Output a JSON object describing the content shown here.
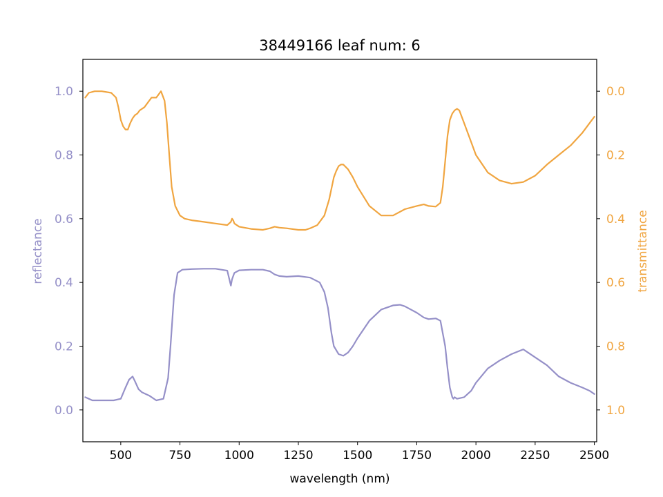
{
  "chart_data": {
    "type": "line",
    "title": "38449166 leaf num: 6",
    "xlabel": "wavelength (nm)",
    "ylabel_left": "reflectance",
    "ylabel_right": "transmittance",
    "xlim": [
      340,
      2510
    ],
    "ylim_left": [
      -0.1,
      1.1
    ],
    "ylim_right": [
      1.1,
      -0.1
    ],
    "x_ticks": [
      500,
      750,
      1000,
      1250,
      1500,
      1750,
      2000,
      2250,
      2500
    ],
    "x_tick_labels": [
      "500",
      "750",
      "1000",
      "1250",
      "1500",
      "1750",
      "2000",
      "2250",
      "2500"
    ],
    "y_left_ticks": [
      0.0,
      0.2,
      0.4,
      0.6,
      0.8,
      1.0
    ],
    "y_left_tick_labels": [
      "0.0",
      "0.2",
      "0.4",
      "0.6",
      "0.8",
      "1.0"
    ],
    "y_right_ticks": [
      0.0,
      0.2,
      0.4,
      0.6,
      0.8,
      1.0
    ],
    "y_right_tick_labels": [
      "0.0",
      "0.2",
      "0.4",
      "0.6",
      "0.8",
      "1.0"
    ],
    "colors": {
      "reflectance": "#9590c8",
      "transmittance": "#f0a540"
    },
    "grid": false,
    "series": [
      {
        "axis": "left",
        "x": [
          350,
          380,
          420,
          470,
          500,
          520,
          535,
          550,
          560,
          575,
          590,
          620,
          650,
          680,
          700,
          710,
          725,
          740,
          760,
          800,
          850,
          900,
          950,
          965,
          970,
          975,
          980,
          1000,
          1050,
          1100,
          1130,
          1150,
          1170,
          1200,
          1250,
          1300,
          1340,
          1360,
          1375,
          1390,
          1400,
          1420,
          1440,
          1460,
          1480,
          1500,
          1550,
          1600,
          1650,
          1680,
          1700,
          1750,
          1780,
          1800,
          1830,
          1850,
          1870,
          1880,
          1890,
          1900,
          1905,
          1910,
          1920,
          1950,
          1980,
          2000,
          2050,
          2100,
          2150,
          2200,
          2250,
          2300,
          2350,
          2400,
          2450,
          2480,
          2500
        ],
        "y": [
          0.04,
          0.03,
          0.03,
          0.03,
          0.035,
          0.07,
          0.095,
          0.105,
          0.09,
          0.065,
          0.055,
          0.045,
          0.03,
          0.035,
          0.1,
          0.2,
          0.36,
          0.43,
          0.44,
          0.442,
          0.443,
          0.443,
          0.437,
          0.39,
          0.41,
          0.42,
          0.43,
          0.438,
          0.44,
          0.44,
          0.435,
          0.425,
          0.42,
          0.418,
          0.42,
          0.415,
          0.4,
          0.37,
          0.32,
          0.24,
          0.2,
          0.175,
          0.17,
          0.18,
          0.2,
          0.225,
          0.28,
          0.315,
          0.328,
          0.33,
          0.325,
          0.305,
          0.29,
          0.285,
          0.287,
          0.28,
          0.2,
          0.13,
          0.07,
          0.04,
          0.035,
          0.04,
          0.035,
          0.04,
          0.06,
          0.085,
          0.13,
          0.155,
          0.175,
          0.19,
          0.165,
          0.14,
          0.105,
          0.085,
          0.07,
          0.06,
          0.05
        ]
      },
      {
        "axis": "right",
        "x": [
          350,
          365,
          390,
          420,
          460,
          480,
          490,
          500,
          510,
          520,
          530,
          540,
          550,
          560,
          570,
          580,
          600,
          630,
          650,
          670,
          685,
          695,
          705,
          715,
          730,
          750,
          770,
          800,
          850,
          900,
          950,
          965,
          970,
          975,
          980,
          1000,
          1050,
          1100,
          1130,
          1150,
          1170,
          1200,
          1250,
          1280,
          1300,
          1330,
          1360,
          1380,
          1400,
          1410,
          1420,
          1430,
          1440,
          1460,
          1480,
          1500,
          1550,
          1600,
          1650,
          1700,
          1750,
          1780,
          1800,
          1830,
          1850,
          1860,
          1870,
          1880,
          1890,
          1900,
          1910,
          1920,
          1930,
          1950,
          1980,
          2000,
          2050,
          2100,
          2150,
          2200,
          2250,
          2300,
          2350,
          2400,
          2450,
          2480,
          2500
        ],
        "y": [
          0.02,
          0.005,
          0.0,
          0.0,
          0.005,
          0.02,
          0.05,
          0.09,
          0.11,
          0.12,
          0.12,
          0.1,
          0.085,
          0.075,
          0.07,
          0.06,
          0.05,
          0.02,
          0.02,
          0.0,
          0.03,
          0.1,
          0.2,
          0.3,
          0.36,
          0.39,
          0.4,
          0.405,
          0.41,
          0.415,
          0.42,
          0.41,
          0.4,
          0.405,
          0.415,
          0.425,
          0.432,
          0.435,
          0.43,
          0.425,
          0.428,
          0.43,
          0.435,
          0.435,
          0.43,
          0.42,
          0.39,
          0.34,
          0.27,
          0.25,
          0.235,
          0.23,
          0.23,
          0.245,
          0.27,
          0.3,
          0.36,
          0.39,
          0.39,
          0.37,
          0.36,
          0.355,
          0.36,
          0.362,
          0.35,
          0.3,
          0.22,
          0.14,
          0.09,
          0.07,
          0.06,
          0.055,
          0.06,
          0.1,
          0.16,
          0.2,
          0.255,
          0.28,
          0.29,
          0.285,
          0.265,
          0.23,
          0.2,
          0.17,
          0.13,
          0.1,
          0.08
        ]
      }
    ]
  }
}
